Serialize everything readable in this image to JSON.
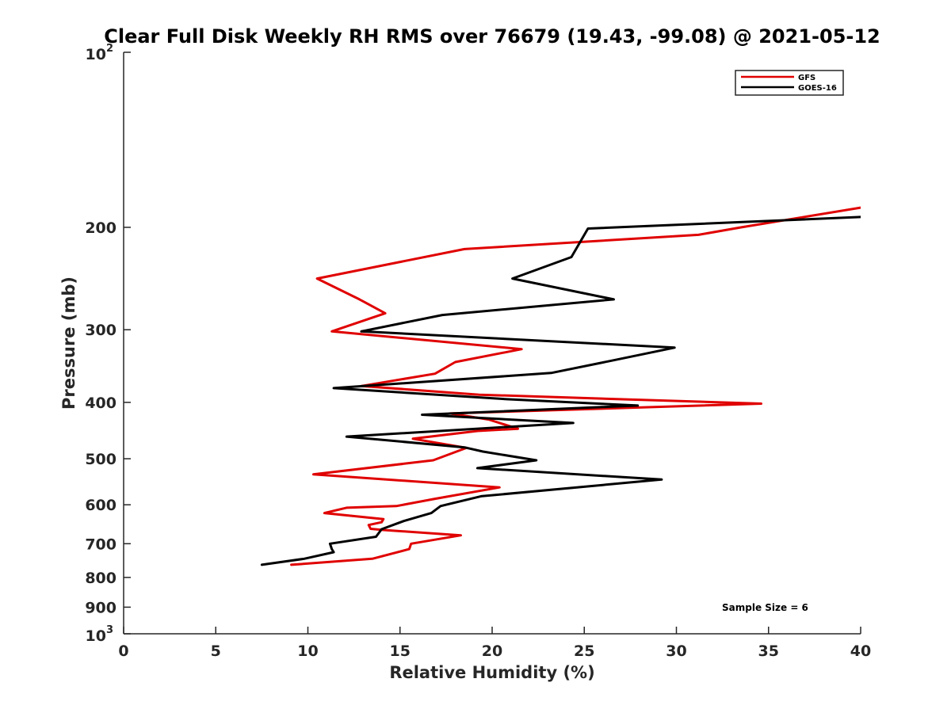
{
  "chart_data": {
    "type": "line",
    "title": "Clear Full Disk Weekly RH RMS over 76679 (19.43, -99.08) @ 2021-05-12",
    "xlabel": "Relative Humidity (%)",
    "ylabel": "Pressure (mb)",
    "xlim": [
      0,
      40
    ],
    "ylim": [
      100,
      1000
    ],
    "yscale": "log",
    "y_reversed": true,
    "grid": false,
    "legend_position": "top-right",
    "x_ticks": [
      "0",
      "5",
      "10",
      "15",
      "20",
      "25",
      "30",
      "35",
      "40"
    ],
    "y_ticks": [
      {
        "value": 100,
        "base": "10",
        "exp": "2"
      },
      {
        "value": 200,
        "label": "200"
      },
      {
        "value": 300,
        "label": "300"
      },
      {
        "value": 400,
        "label": "400"
      },
      {
        "value": 500,
        "label": "500"
      },
      {
        "value": 600,
        "label": "600"
      },
      {
        "value": 700,
        "label": "700"
      },
      {
        "value": 800,
        "label": "800"
      },
      {
        "value": 900,
        "label": "900"
      },
      {
        "value": 1000,
        "base": "10",
        "exp": "3"
      }
    ],
    "annotation": "Sample Size = 6",
    "series": [
      {
        "name": "GFS",
        "color": "#e00000",
        "points": [
          [
            9.1,
            761
          ],
          [
            13.5,
            743
          ],
          [
            15.5,
            715
          ],
          [
            15.6,
            700
          ],
          [
            18.3,
            677
          ],
          [
            14.1,
            663
          ],
          [
            13.4,
            660
          ],
          [
            13.3,
            650
          ],
          [
            14.0,
            643
          ],
          [
            14.1,
            635
          ],
          [
            10.9,
            620
          ],
          [
            12.1,
            607
          ],
          [
            14.8,
            603
          ],
          [
            16.9,
            586
          ],
          [
            20.4,
            560
          ],
          [
            10.3,
            532
          ],
          [
            16.8,
            503
          ],
          [
            18.6,
            479
          ],
          [
            15.7,
            462
          ],
          [
            19.2,
            448
          ],
          [
            21.4,
            444
          ],
          [
            19.8,
            428
          ],
          [
            17.7,
            418
          ],
          [
            34.6,
            402
          ],
          [
            19.3,
            388
          ],
          [
            12.9,
            375
          ],
          [
            16.9,
            357
          ],
          [
            18.0,
            341
          ],
          [
            21.6,
            324
          ],
          [
            11.3,
            302
          ],
          [
            14.2,
            281
          ],
          [
            12.8,
            266
          ],
          [
            10.5,
            245
          ],
          [
            18.5,
            218
          ],
          [
            31.2,
            206
          ],
          [
            33.5,
            200
          ],
          [
            40.0,
            185
          ]
        ]
      },
      {
        "name": "GOES-16",
        "color": "#000000",
        "points": [
          [
            7.5,
            761
          ],
          [
            9.8,
            743
          ],
          [
            11.4,
            724
          ],
          [
            11.3,
            715
          ],
          [
            11.2,
            700
          ],
          [
            13.7,
            681
          ],
          [
            14.0,
            661
          ],
          [
            15.2,
            640
          ],
          [
            16.7,
            620
          ],
          [
            17.2,
            603
          ],
          [
            19.4,
            580
          ],
          [
            29.2,
            543
          ],
          [
            19.2,
            519
          ],
          [
            22.4,
            503
          ],
          [
            19.5,
            486
          ],
          [
            18.5,
            478
          ],
          [
            12.1,
            458
          ],
          [
            24.4,
            434
          ],
          [
            16.2,
            420
          ],
          [
            27.9,
            405
          ],
          [
            20.8,
            395
          ],
          [
            11.4,
            378
          ],
          [
            23.2,
            356
          ],
          [
            26.5,
            339
          ],
          [
            29.9,
            322
          ],
          [
            12.9,
            302
          ],
          [
            17.3,
            283
          ],
          [
            26.6,
            266
          ],
          [
            21.1,
            245
          ],
          [
            24.3,
            225
          ],
          [
            25.2,
            201
          ],
          [
            40.0,
            192
          ]
        ]
      }
    ]
  }
}
